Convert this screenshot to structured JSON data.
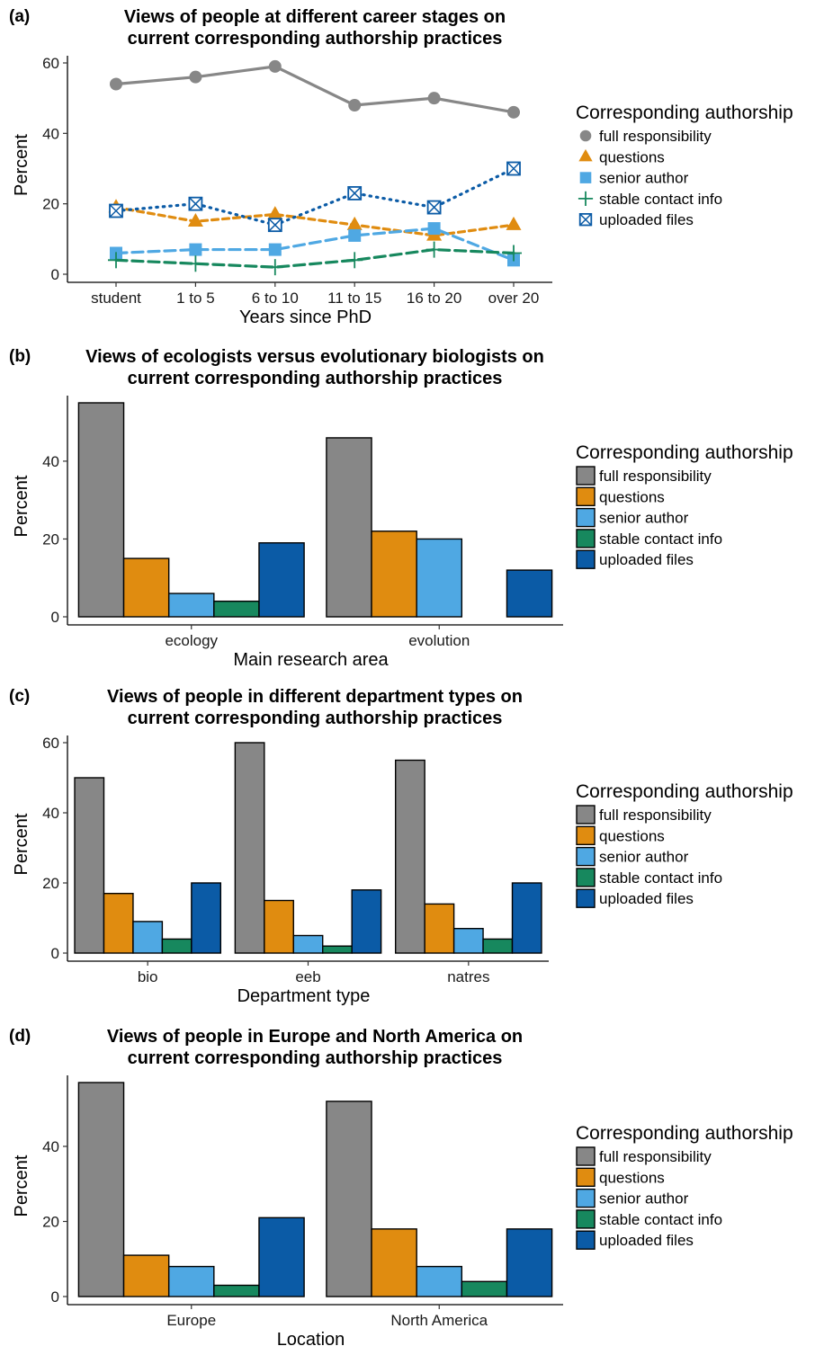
{
  "colors": {
    "full_responsibility": "#878787",
    "questions": "#E08C10",
    "senior_author": "#4FA8E3",
    "stable_contact_info": "#17885E",
    "uploaded_files": "#0B5BA6"
  },
  "chart_data": [
    {
      "panel": "(a)",
      "type": "line",
      "title": [
        "Views of people at different career stages on",
        "current corresponding authorship practices"
      ],
      "xlabel": "Years since PhD",
      "ylabel": "Percent",
      "categories": [
        "student",
        "1 to 5",
        "6 to 10",
        "11 to 15",
        "16 to 20",
        "over 20"
      ],
      "ylim": [
        0,
        60
      ],
      "yticks": [
        0,
        20,
        40,
        60
      ],
      "legend_title": "Corresponding authorship",
      "legend_position": "right",
      "series": [
        {
          "name": "full responsibility",
          "values": [
            54,
            56,
            59,
            48,
            50,
            46
          ],
          "marker": "circle",
          "line": "solid",
          "color_key": "full_responsibility"
        },
        {
          "name": "questions",
          "values": [
            19,
            15,
            17,
            14,
            11,
            14
          ],
          "marker": "triangle",
          "line": "dashed",
          "color_key": "questions"
        },
        {
          "name": "senior author",
          "values": [
            6,
            7,
            7,
            11,
            13,
            4
          ],
          "marker": "square",
          "line": "longdash",
          "color_key": "senior_author"
        },
        {
          "name": "stable contact info",
          "values": [
            4,
            3,
            2,
            4,
            7,
            6
          ],
          "marker": "plus",
          "line": "longdash",
          "color_key": "stable_contact_info"
        },
        {
          "name": "uploaded files",
          "values": [
            18,
            20,
            14,
            23,
            19,
            30
          ],
          "marker": "boxx",
          "line": "dotted",
          "color_key": "uploaded_files"
        }
      ]
    },
    {
      "panel": "(b)",
      "type": "bar",
      "title": [
        "Views of ecologists versus evolutionary biologists on",
        "current corresponding authorship practices"
      ],
      "xlabel": "Main research area",
      "ylabel": "Percent",
      "categories": [
        "ecology",
        "evolution"
      ],
      "ylim": [
        0,
        55
      ],
      "yticks": [
        0,
        20,
        40
      ],
      "legend_title": "Corresponding authorship",
      "legend_position": "right",
      "series": [
        {
          "name": "full responsibility",
          "values": [
            55,
            46
          ],
          "color_key": "full_responsibility"
        },
        {
          "name": "questions",
          "values": [
            15,
            22
          ],
          "color_key": "questions"
        },
        {
          "name": "senior author",
          "values": [
            6,
            20
          ],
          "color_key": "senior_author"
        },
        {
          "name": "stable contact info",
          "values": [
            4,
            0
          ],
          "color_key": "stable_contact_info"
        },
        {
          "name": "uploaded files",
          "values": [
            19,
            12
          ],
          "color_key": "uploaded_files"
        }
      ]
    },
    {
      "panel": "(c)",
      "type": "bar",
      "title": [
        "Views of people in different department types on",
        "current corresponding authorship practices"
      ],
      "xlabel": "Department type",
      "ylabel": "Percent",
      "categories": [
        "bio",
        "eeb",
        "natres"
      ],
      "ylim": [
        0,
        60
      ],
      "yticks": [
        0,
        20,
        40,
        60
      ],
      "legend_title": "Corresponding authorship",
      "legend_position": "right",
      "series": [
        {
          "name": "full responsibility",
          "values": [
            50,
            60,
            55
          ],
          "color_key": "full_responsibility"
        },
        {
          "name": "questions",
          "values": [
            17,
            15,
            14
          ],
          "color_key": "questions"
        },
        {
          "name": "senior author",
          "values": [
            9,
            5,
            7
          ],
          "color_key": "senior_author"
        },
        {
          "name": "stable contact info",
          "values": [
            4,
            2,
            4
          ],
          "color_key": "stable_contact_info"
        },
        {
          "name": "uploaded files",
          "values": [
            20,
            18,
            20
          ],
          "color_key": "uploaded_files"
        }
      ]
    },
    {
      "panel": "(d)",
      "type": "bar",
      "title": [
        "Views of people in Europe and North America on",
        "current corresponding authorship practices"
      ],
      "xlabel": "Location",
      "ylabel": "Percent",
      "categories": [
        "Europe",
        "North America"
      ],
      "ylim": [
        0,
        57
      ],
      "yticks": [
        0,
        20,
        40
      ],
      "legend_title": "Corresponding authorship",
      "legend_position": "right",
      "series": [
        {
          "name": "full responsibility",
          "values": [
            57,
            52
          ],
          "color_key": "full_responsibility"
        },
        {
          "name": "questions",
          "values": [
            11,
            18
          ],
          "color_key": "questions"
        },
        {
          "name": "senior author",
          "values": [
            8,
            8
          ],
          "color_key": "senior_author"
        },
        {
          "name": "stable contact info",
          "values": [
            3,
            4
          ],
          "color_key": "stable_contact_info"
        },
        {
          "name": "uploaded files",
          "values": [
            21,
            18
          ],
          "color_key": "uploaded_files"
        }
      ]
    }
  ]
}
